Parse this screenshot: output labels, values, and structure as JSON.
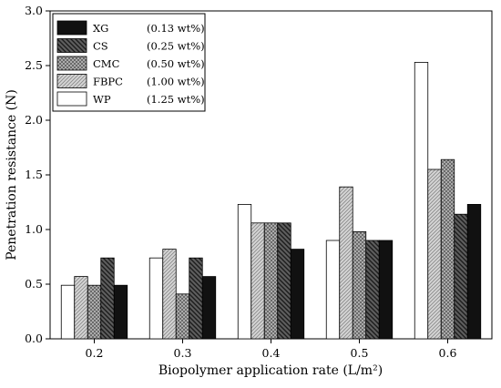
{
  "chart_data": {
    "type": "bar",
    "title": "",
    "xlabel": "Biopolymer application rate (L/m²)",
    "ylabel": "Penetration resistance (N)",
    "ylim": [
      0,
      3.0
    ],
    "yticks": [
      "0.0",
      "0.5",
      "1.0",
      "1.5",
      "2.0",
      "2.5",
      "3.0"
    ],
    "categories": [
      "0.2",
      "0.3",
      "0.4",
      "0.5",
      "0.6"
    ],
    "grid": false,
    "legend_position": "top-left",
    "series": [
      {
        "name": "WP",
        "dose": "(1.25 wt%)",
        "fill": "white",
        "values": [
          0.49,
          0.74,
          1.23,
          0.9,
          2.53
        ]
      },
      {
        "name": "FBPC",
        "dose": "(1.00 wt%)",
        "fill": "diagonal-light",
        "values": [
          0.57,
          0.82,
          1.06,
          1.39,
          1.55
        ]
      },
      {
        "name": "CMC",
        "dose": "(0.50 wt%)",
        "fill": "crosshatch",
        "values": [
          0.49,
          0.41,
          1.06,
          0.98,
          1.64
        ]
      },
      {
        "name": "CS",
        "dose": "(0.25 wt%)",
        "fill": "diagonal-dark",
        "values": [
          0.74,
          0.74,
          1.06,
          0.9,
          1.14
        ]
      },
      {
        "name": "XG",
        "dose": "(0.13 wt%)",
        "fill": "black",
        "values": [
          0.49,
          0.57,
          0.82,
          0.9,
          1.23
        ]
      }
    ],
    "legend_order": [
      "XG",
      "CS",
      "CMC",
      "FBPC",
      "WP"
    ]
  }
}
